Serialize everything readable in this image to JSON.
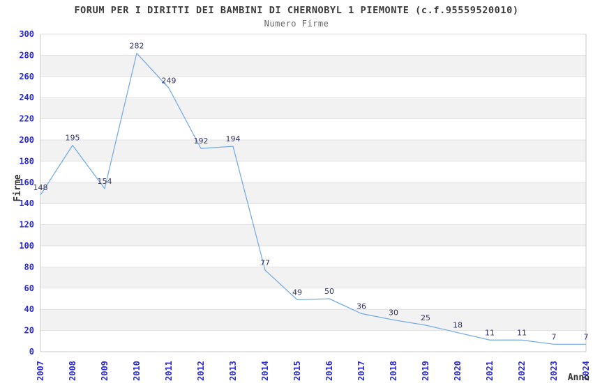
{
  "chart_data": {
    "type": "line",
    "title": "FORUM PER I DIRITTI DEI BAMBINI DI CHERNOBYL 1 PIEMONTE (c.f.95559520010)",
    "subtitle": "Numero Firme",
    "xlabel": "Anno",
    "ylabel": "Firme",
    "categories": [
      "2007",
      "2008",
      "2009",
      "2010",
      "2011",
      "2012",
      "2013",
      "2014",
      "2015",
      "2016",
      "2017",
      "2018",
      "2019",
      "2020",
      "2021",
      "2022",
      "2023",
      "2024"
    ],
    "values": [
      148,
      195,
      154,
      282,
      249,
      192,
      194,
      77,
      49,
      50,
      36,
      30,
      25,
      18,
      11,
      11,
      7,
      7
    ],
    "ylim": [
      0,
      300
    ],
    "ytick_step": 20,
    "grid": "horizontal-bands-alternating",
    "legend": "none",
    "colors": {
      "line": "#79ade4",
      "tick_label": "#2828dd",
      "data_label": "#333366",
      "title": "#3a3a3a",
      "subtitle": "#666666",
      "band": "#f2f2f2",
      "gridline": "#e2e2e2",
      "axis_border": "#c8c8c8",
      "axis_title": "#333333",
      "background": "#ffffff"
    }
  }
}
